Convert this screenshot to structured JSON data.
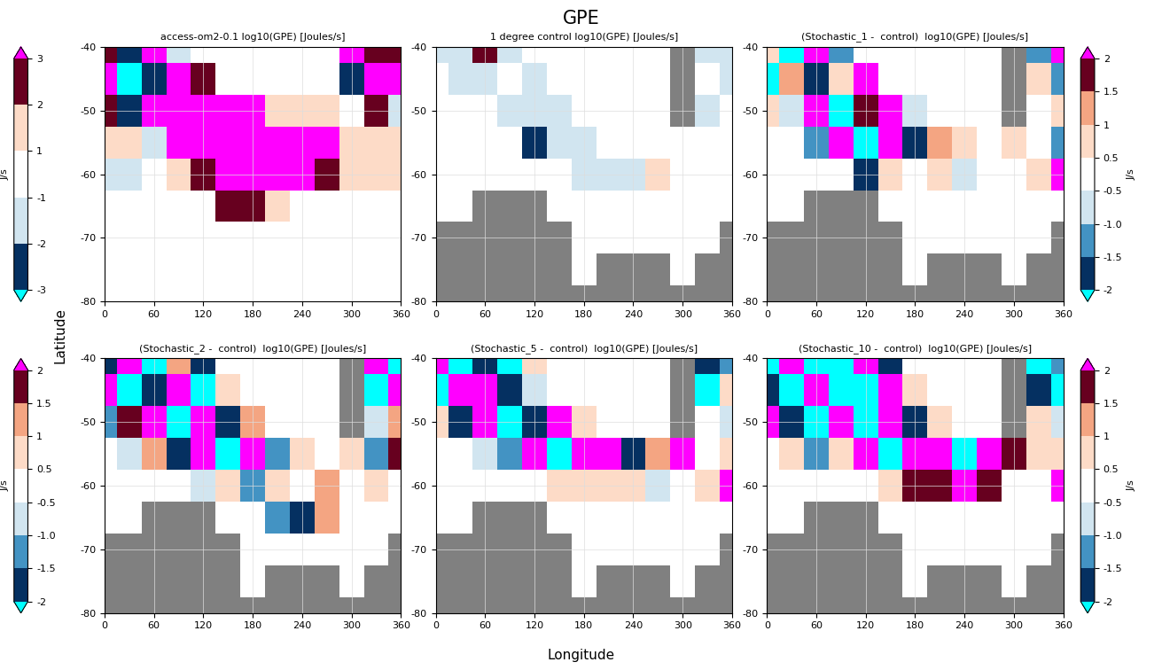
{
  "title": "GPE",
  "x_label": "Longitude",
  "y_label": "Latitude",
  "chart_data": [
    {
      "type": "heatmap",
      "title": "access-om2-0.1 log10(GPE) [Joules/s]",
      "x": [
        0,
        30,
        60,
        90,
        120,
        150,
        180,
        210,
        240,
        270,
        300,
        330,
        360
      ],
      "y": [
        -40,
        -45,
        -50,
        -55,
        -60,
        -65,
        -70,
        -75,
        -80
      ],
      "cells": [
        [
          2.5,
          -2.5,
          3.5,
          -1.5,
          0.5,
          0.5,
          0,
          0,
          0,
          0,
          3.5,
          2.5,
          2.5
        ],
        [
          3.5,
          -3.5,
          -2.5,
          3.5,
          2.5,
          0.5,
          0,
          0,
          0,
          0,
          -2.5,
          3.5,
          3.5
        ],
        [
          2.5,
          -2.5,
          3.5,
          3.5,
          3.5,
          3.5,
          3.5,
          1.5,
          1.5,
          1.5,
          0.5,
          2.5,
          -1.5
        ],
        [
          1.5,
          1.5,
          -1.5,
          3.5,
          3.5,
          3.5,
          3.5,
          3.5,
          3.5,
          3.5,
          1.5,
          1.5,
          1.5
        ],
        [
          -1.5,
          -1.5,
          0,
          1.5,
          2.5,
          3.5,
          3.5,
          3.5,
          3.5,
          2.5,
          1.5,
          1.5,
          1.5
        ],
        [
          0,
          0,
          0,
          0,
          0,
          2.5,
          2.5,
          1.5,
          0,
          0,
          0,
          0,
          0
        ],
        [
          0,
          0,
          0,
          0,
          0,
          0,
          0,
          0,
          0,
          0,
          0,
          0,
          0
        ],
        [
          0,
          0,
          0,
          0,
          0,
          0,
          0,
          0,
          0,
          0,
          0,
          0,
          0
        ],
        [
          0,
          0,
          0,
          0,
          0,
          0,
          0,
          0,
          0,
          0,
          0,
          0,
          0
        ]
      ],
      "levels": [
        -3,
        -2,
        -1,
        1,
        2,
        3
      ],
      "colors": [
        "#00ffff",
        "#053061",
        "#d1e5f0",
        "#ffffff",
        "#fddbc7",
        "#67001f",
        "#ff00ff"
      ],
      "colorbar": {
        "label": "J/s",
        "ticks": [
          -3,
          -2,
          -1,
          1,
          2,
          3
        ]
      },
      "xlim": [
        0,
        360
      ],
      "ylim": [
        -80,
        -40
      ],
      "xticks": [
        0,
        60,
        120,
        180,
        240,
        300,
        360
      ],
      "yticks": [
        -80,
        -70,
        -60,
        -50,
        -40
      ],
      "grid": true
    },
    {
      "type": "heatmap",
      "title": "1 degree control log10(GPE) [Joules/s]",
      "x": [
        0,
        30,
        60,
        90,
        120,
        150,
        180,
        210,
        240,
        270,
        300,
        330,
        360
      ],
      "y": [
        -40,
        -45,
        -50,
        -55,
        -60,
        -65,
        -70,
        -75,
        -80
      ],
      "cells": [
        [
          -1.5,
          -1.5,
          2.5,
          -1.5,
          0,
          0,
          0,
          0,
          0,
          0,
          null,
          -1.5,
          -1.5
        ],
        [
          0,
          -1.5,
          -1.5,
          0,
          -1.5,
          0,
          0,
          0,
          0,
          0,
          null,
          0,
          -1.5
        ],
        [
          0,
          0,
          0,
          -1.5,
          -1.5,
          -1.5,
          0,
          0,
          0,
          0,
          null,
          -1.5,
          0
        ],
        [
          0,
          0,
          0,
          0,
          -2.5,
          -1.5,
          -1.5,
          0,
          0,
          0,
          0,
          0,
          0
        ],
        [
          0,
          0,
          0,
          0,
          0,
          0,
          -1.5,
          -1.5,
          -1.5,
          1.5,
          0,
          0,
          0
        ],
        [
          0,
          0,
          null,
          null,
          null,
          0,
          0,
          0,
          0,
          0,
          0,
          0,
          0
        ],
        [
          null,
          null,
          null,
          null,
          null,
          null,
          0,
          0,
          0,
          0,
          0,
          0,
          null
        ],
        [
          null,
          null,
          null,
          null,
          null,
          null,
          0,
          null,
          null,
          null,
          0,
          null,
          null
        ],
        [
          null,
          null,
          null,
          null,
          null,
          null,
          null,
          null,
          null,
          null,
          null,
          null,
          null
        ]
      ],
      "levels": [
        -3,
        -2,
        -1,
        1,
        2,
        3
      ],
      "colors": [
        "#00ffff",
        "#053061",
        "#d1e5f0",
        "#ffffff",
        "#fddbc7",
        "#67001f",
        "#ff00ff"
      ],
      "xlim": [
        0,
        360
      ],
      "ylim": [
        -80,
        -40
      ],
      "xticks": [
        0,
        60,
        120,
        180,
        240,
        300,
        360
      ],
      "yticks": [
        -80,
        -70,
        -60,
        -50,
        -40
      ],
      "grid": true
    },
    {
      "type": "heatmap",
      "title": "(Stochastic_1 -  control)  log10(GPE) [Joules/s]",
      "x": [
        0,
        30,
        60,
        90,
        120,
        150,
        180,
        210,
        240,
        270,
        300,
        330,
        360
      ],
      "y": [
        -40,
        -45,
        -50,
        -55,
        -60,
        -65,
        -70,
        -75,
        -80
      ],
      "cells": [
        [
          0.75,
          -2.5,
          2.5,
          -1.25,
          0,
          0,
          0,
          0,
          0,
          0,
          null,
          -1.25,
          2.5
        ],
        [
          -2.5,
          1.25,
          -1.75,
          0.75,
          2.5,
          0,
          0,
          0,
          0,
          0,
          null,
          0.75,
          -1.25
        ],
        [
          0.75,
          -0.75,
          2.5,
          -2.5,
          1.75,
          2.5,
          -0.75,
          0,
          0,
          0,
          null,
          0,
          0.75
        ],
        [
          0,
          0,
          -1.25,
          2.5,
          -2.5,
          2.5,
          -1.75,
          1.25,
          0.75,
          0,
          0.75,
          0,
          -1.25
        ],
        [
          0,
          0,
          0,
          0,
          -1.75,
          0.75,
          0,
          0.75,
          -0.75,
          0,
          0,
          0.75,
          2.5
        ],
        [
          0,
          0,
          null,
          null,
          null,
          0,
          0,
          0,
          0,
          0,
          0,
          0,
          0
        ],
        [
          null,
          null,
          null,
          null,
          null,
          null,
          0,
          0,
          0,
          0,
          0,
          0,
          null
        ],
        [
          null,
          null,
          null,
          null,
          null,
          null,
          0,
          null,
          null,
          null,
          0,
          null,
          null
        ],
        [
          null,
          null,
          null,
          null,
          null,
          null,
          null,
          null,
          null,
          null,
          null,
          null,
          null
        ]
      ],
      "levels": [
        -2,
        -1.5,
        -1,
        -0.5,
        0.5,
        1,
        1.5,
        2
      ],
      "colors": [
        "#00ffff",
        "#053061",
        "#4393c3",
        "#d1e5f0",
        "#ffffff",
        "#fddbc7",
        "#f4a582",
        "#67001f",
        "#ff00ff"
      ],
      "colorbar": {
        "label": "J/s",
        "ticks": [
          -2,
          -1.5,
          {
            "value": -1,
            "label": "-1.0"
          },
          -0.5,
          0.5,
          1,
          1.5,
          2
        ]
      },
      "xlim": [
        0,
        360
      ],
      "ylim": [
        -80,
        -40
      ],
      "xticks": [
        0,
        60,
        120,
        180,
        240,
        300,
        360
      ],
      "yticks": [
        -80,
        -70,
        -60,
        -50,
        -40
      ],
      "grid": true
    },
    {
      "type": "heatmap",
      "title": "(Stochastic_2 -  control)  log10(GPE) [Joules/s]",
      "x": [
        0,
        30,
        60,
        90,
        120,
        150,
        180,
        210,
        240,
        270,
        300,
        330,
        360
      ],
      "y": [
        -40,
        -45,
        -50,
        -55,
        -60,
        -65,
        -70,
        -75,
        -80
      ],
      "cells": [
        [
          -1.75,
          2.5,
          -2.5,
          1.25,
          -1.75,
          0,
          0,
          0,
          0,
          0,
          null,
          2.5,
          -2.5
        ],
        [
          2.5,
          -2.5,
          -1.75,
          2.5,
          -2.5,
          0.75,
          0,
          0,
          0,
          0,
          null,
          -2.5,
          2.5
        ],
        [
          -1.25,
          1.75,
          2.5,
          -2.5,
          2.5,
          -1.75,
          1.25,
          0,
          0,
          0,
          null,
          -0.75,
          1.25
        ],
        [
          0,
          -0.75,
          1.25,
          -1.75,
          2.5,
          -2.5,
          2.5,
          -1.25,
          0.75,
          0,
          0.75,
          -1.25,
          1.75
        ],
        [
          0,
          0,
          0,
          0,
          -0.75,
          0.75,
          -1.25,
          0.75,
          0,
          1.25,
          0,
          0.75,
          0
        ],
        [
          0,
          0,
          null,
          null,
          null,
          0,
          0,
          -1.25,
          -1.75,
          1.25,
          0,
          0,
          0
        ],
        [
          null,
          null,
          null,
          null,
          null,
          null,
          0,
          0,
          0,
          0,
          0,
          0,
          null
        ],
        [
          null,
          null,
          null,
          null,
          null,
          null,
          0,
          null,
          null,
          null,
          0,
          null,
          null
        ],
        [
          null,
          null,
          null,
          null,
          null,
          null,
          null,
          null,
          null,
          null,
          null,
          null,
          null
        ]
      ],
      "levels": [
        -2,
        -1.5,
        -1,
        -0.5,
        0.5,
        1,
        1.5,
        2
      ],
      "colors": [
        "#00ffff",
        "#053061",
        "#4393c3",
        "#d1e5f0",
        "#ffffff",
        "#fddbc7",
        "#f4a582",
        "#67001f",
        "#ff00ff"
      ],
      "colorbar": {
        "label": "J/s",
        "ticks": [
          -2,
          -1.5,
          {
            "value": -1,
            "label": "-1.0"
          },
          -0.5,
          0.5,
          1,
          1.5,
          2
        ]
      },
      "xlim": [
        0,
        360
      ],
      "ylim": [
        -80,
        -40
      ],
      "xticks": [
        0,
        60,
        120,
        180,
        240,
        300,
        360
      ],
      "yticks": [
        -80,
        -70,
        -60,
        -50,
        -40
      ],
      "grid": true
    },
    {
      "type": "heatmap",
      "title": "(Stochastic_5 -  control)  log10(GPE) [Joules/s]",
      "x": [
        0,
        30,
        60,
        90,
        120,
        150,
        180,
        210,
        240,
        270,
        300,
        330,
        360
      ],
      "y": [
        -40,
        -45,
        -50,
        -55,
        -60,
        -65,
        -70,
        -75,
        -80
      ],
      "cells": [
        [
          2.5,
          -2.5,
          -1.75,
          -2.5,
          0.75,
          0,
          0,
          0,
          0,
          0,
          null,
          -1.75,
          -1.25
        ],
        [
          -2.5,
          2.5,
          2.5,
          -1.75,
          -0.75,
          0,
          0,
          0,
          0,
          0,
          null,
          -2.5,
          0.75
        ],
        [
          0.75,
          -1.75,
          2.5,
          -2.5,
          -1.75,
          2.5,
          0.75,
          0,
          0,
          0,
          null,
          0,
          -0.75
        ],
        [
          0,
          0,
          -0.75,
          -1.25,
          2.5,
          -2.5,
          2.5,
          2.5,
          -1.75,
          1.25,
          2.5,
          0,
          0.75
        ],
        [
          0,
          0,
          0,
          0,
          0,
          0.75,
          0.75,
          0.75,
          0.75,
          -0.75,
          0,
          0.75,
          2.5
        ],
        [
          0,
          0,
          null,
          null,
          null,
          0,
          0,
          0,
          0,
          0,
          0,
          0,
          0
        ],
        [
          null,
          null,
          null,
          null,
          null,
          null,
          0,
          0,
          0,
          0,
          0,
          0,
          null
        ],
        [
          null,
          null,
          null,
          null,
          null,
          null,
          0,
          null,
          null,
          null,
          0,
          null,
          null
        ],
        [
          null,
          null,
          null,
          null,
          null,
          null,
          null,
          null,
          null,
          null,
          null,
          null,
          null
        ]
      ],
      "levels": [
        -2,
        -1.5,
        -1,
        -0.5,
        0.5,
        1,
        1.5,
        2
      ],
      "colors": [
        "#00ffff",
        "#053061",
        "#4393c3",
        "#d1e5f0",
        "#ffffff",
        "#fddbc7",
        "#f4a582",
        "#67001f",
        "#ff00ff"
      ],
      "xlim": [
        0,
        360
      ],
      "ylim": [
        -80,
        -40
      ],
      "xticks": [
        0,
        60,
        120,
        180,
        240,
        300,
        360
      ],
      "yticks": [
        -80,
        -70,
        -60,
        -50,
        -40
      ],
      "grid": true
    },
    {
      "type": "heatmap",
      "title": "(Stochastic_10 -  control)  log10(GPE) [Joules/s]",
      "x": [
        0,
        30,
        60,
        90,
        120,
        150,
        180,
        210,
        240,
        270,
        300,
        330,
        360
      ],
      "y": [
        -40,
        -45,
        -50,
        -55,
        -60,
        -65,
        -70,
        -75,
        -80
      ],
      "cells": [
        [
          -2.5,
          2.5,
          -2.5,
          -2.5,
          2.5,
          -1.75,
          0,
          0,
          0,
          0,
          null,
          -2.5,
          -1.25
        ],
        [
          -1.75,
          -2.5,
          2.5,
          -2.5,
          -2.5,
          2.5,
          0.75,
          0,
          0,
          0,
          null,
          -1.75,
          -2.5
        ],
        [
          2.5,
          -1.75,
          -2.5,
          2.5,
          -2.5,
          2.5,
          -1.75,
          0.75,
          0,
          0,
          null,
          0.75,
          -0.75
        ],
        [
          0,
          0.75,
          -1.25,
          0.75,
          2.5,
          -2.5,
          2.5,
          2.5,
          -2.5,
          2.5,
          1.75,
          0.75,
          0.75
        ],
        [
          0,
          0,
          0,
          0,
          0,
          0.75,
          1.75,
          1.75,
          2.5,
          1.75,
          0,
          0,
          2.5
        ],
        [
          0,
          0,
          null,
          null,
          null,
          0,
          0,
          0,
          0,
          0,
          0,
          0,
          0
        ],
        [
          null,
          null,
          null,
          null,
          null,
          null,
          0,
          0,
          0,
          0,
          0,
          0,
          null
        ],
        [
          null,
          null,
          null,
          null,
          null,
          null,
          0,
          null,
          null,
          null,
          0,
          null,
          null
        ],
        [
          null,
          null,
          null,
          null,
          null,
          null,
          null,
          null,
          null,
          null,
          null,
          null,
          null
        ]
      ],
      "levels": [
        -2,
        -1.5,
        -1,
        -0.5,
        0.5,
        1,
        1.5,
        2
      ],
      "colors": [
        "#00ffff",
        "#053061",
        "#4393c3",
        "#d1e5f0",
        "#ffffff",
        "#fddbc7",
        "#f4a582",
        "#67001f",
        "#ff00ff"
      ],
      "colorbar": {
        "label": "J/s",
        "ticks": [
          -2,
          -1.5,
          {
            "value": -1,
            "label": "-1.0"
          },
          -0.5,
          0.5,
          1,
          1.5,
          2
        ]
      },
      "xlim": [
        0,
        360
      ],
      "ylim": [
        -80,
        -40
      ],
      "xticks": [
        0,
        60,
        120,
        180,
        240,
        300,
        360
      ],
      "yticks": [
        -80,
        -70,
        -60,
        -50,
        -40
      ],
      "grid": true
    }
  ]
}
